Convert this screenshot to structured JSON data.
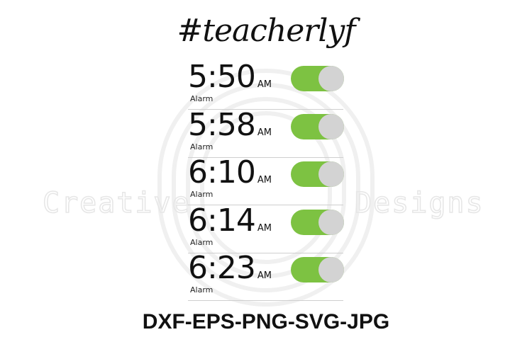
{
  "title": "#teacherlyf",
  "alarms": [
    {
      "time": "5:50",
      "ampm": "AM",
      "label": "Alarm",
      "on": true
    },
    {
      "time": "5:58",
      "ampm": "AM",
      "label": "Alarm",
      "on": true
    },
    {
      "time": "6:10",
      "ampm": "AM",
      "label": "Alarm",
      "on": true
    },
    {
      "time": "6:14",
      "ampm": "AM",
      "label": "Alarm",
      "on": true
    },
    {
      "time": "6:23",
      "ampm": "AM",
      "label": "Alarm",
      "on": true
    }
  ],
  "footer": "DXF-EPS-PNG-SVG-JPG",
  "watermark": "Creative Designs",
  "colors": {
    "toggle_on": "#7dc242",
    "knob": "#d3d3d3"
  }
}
